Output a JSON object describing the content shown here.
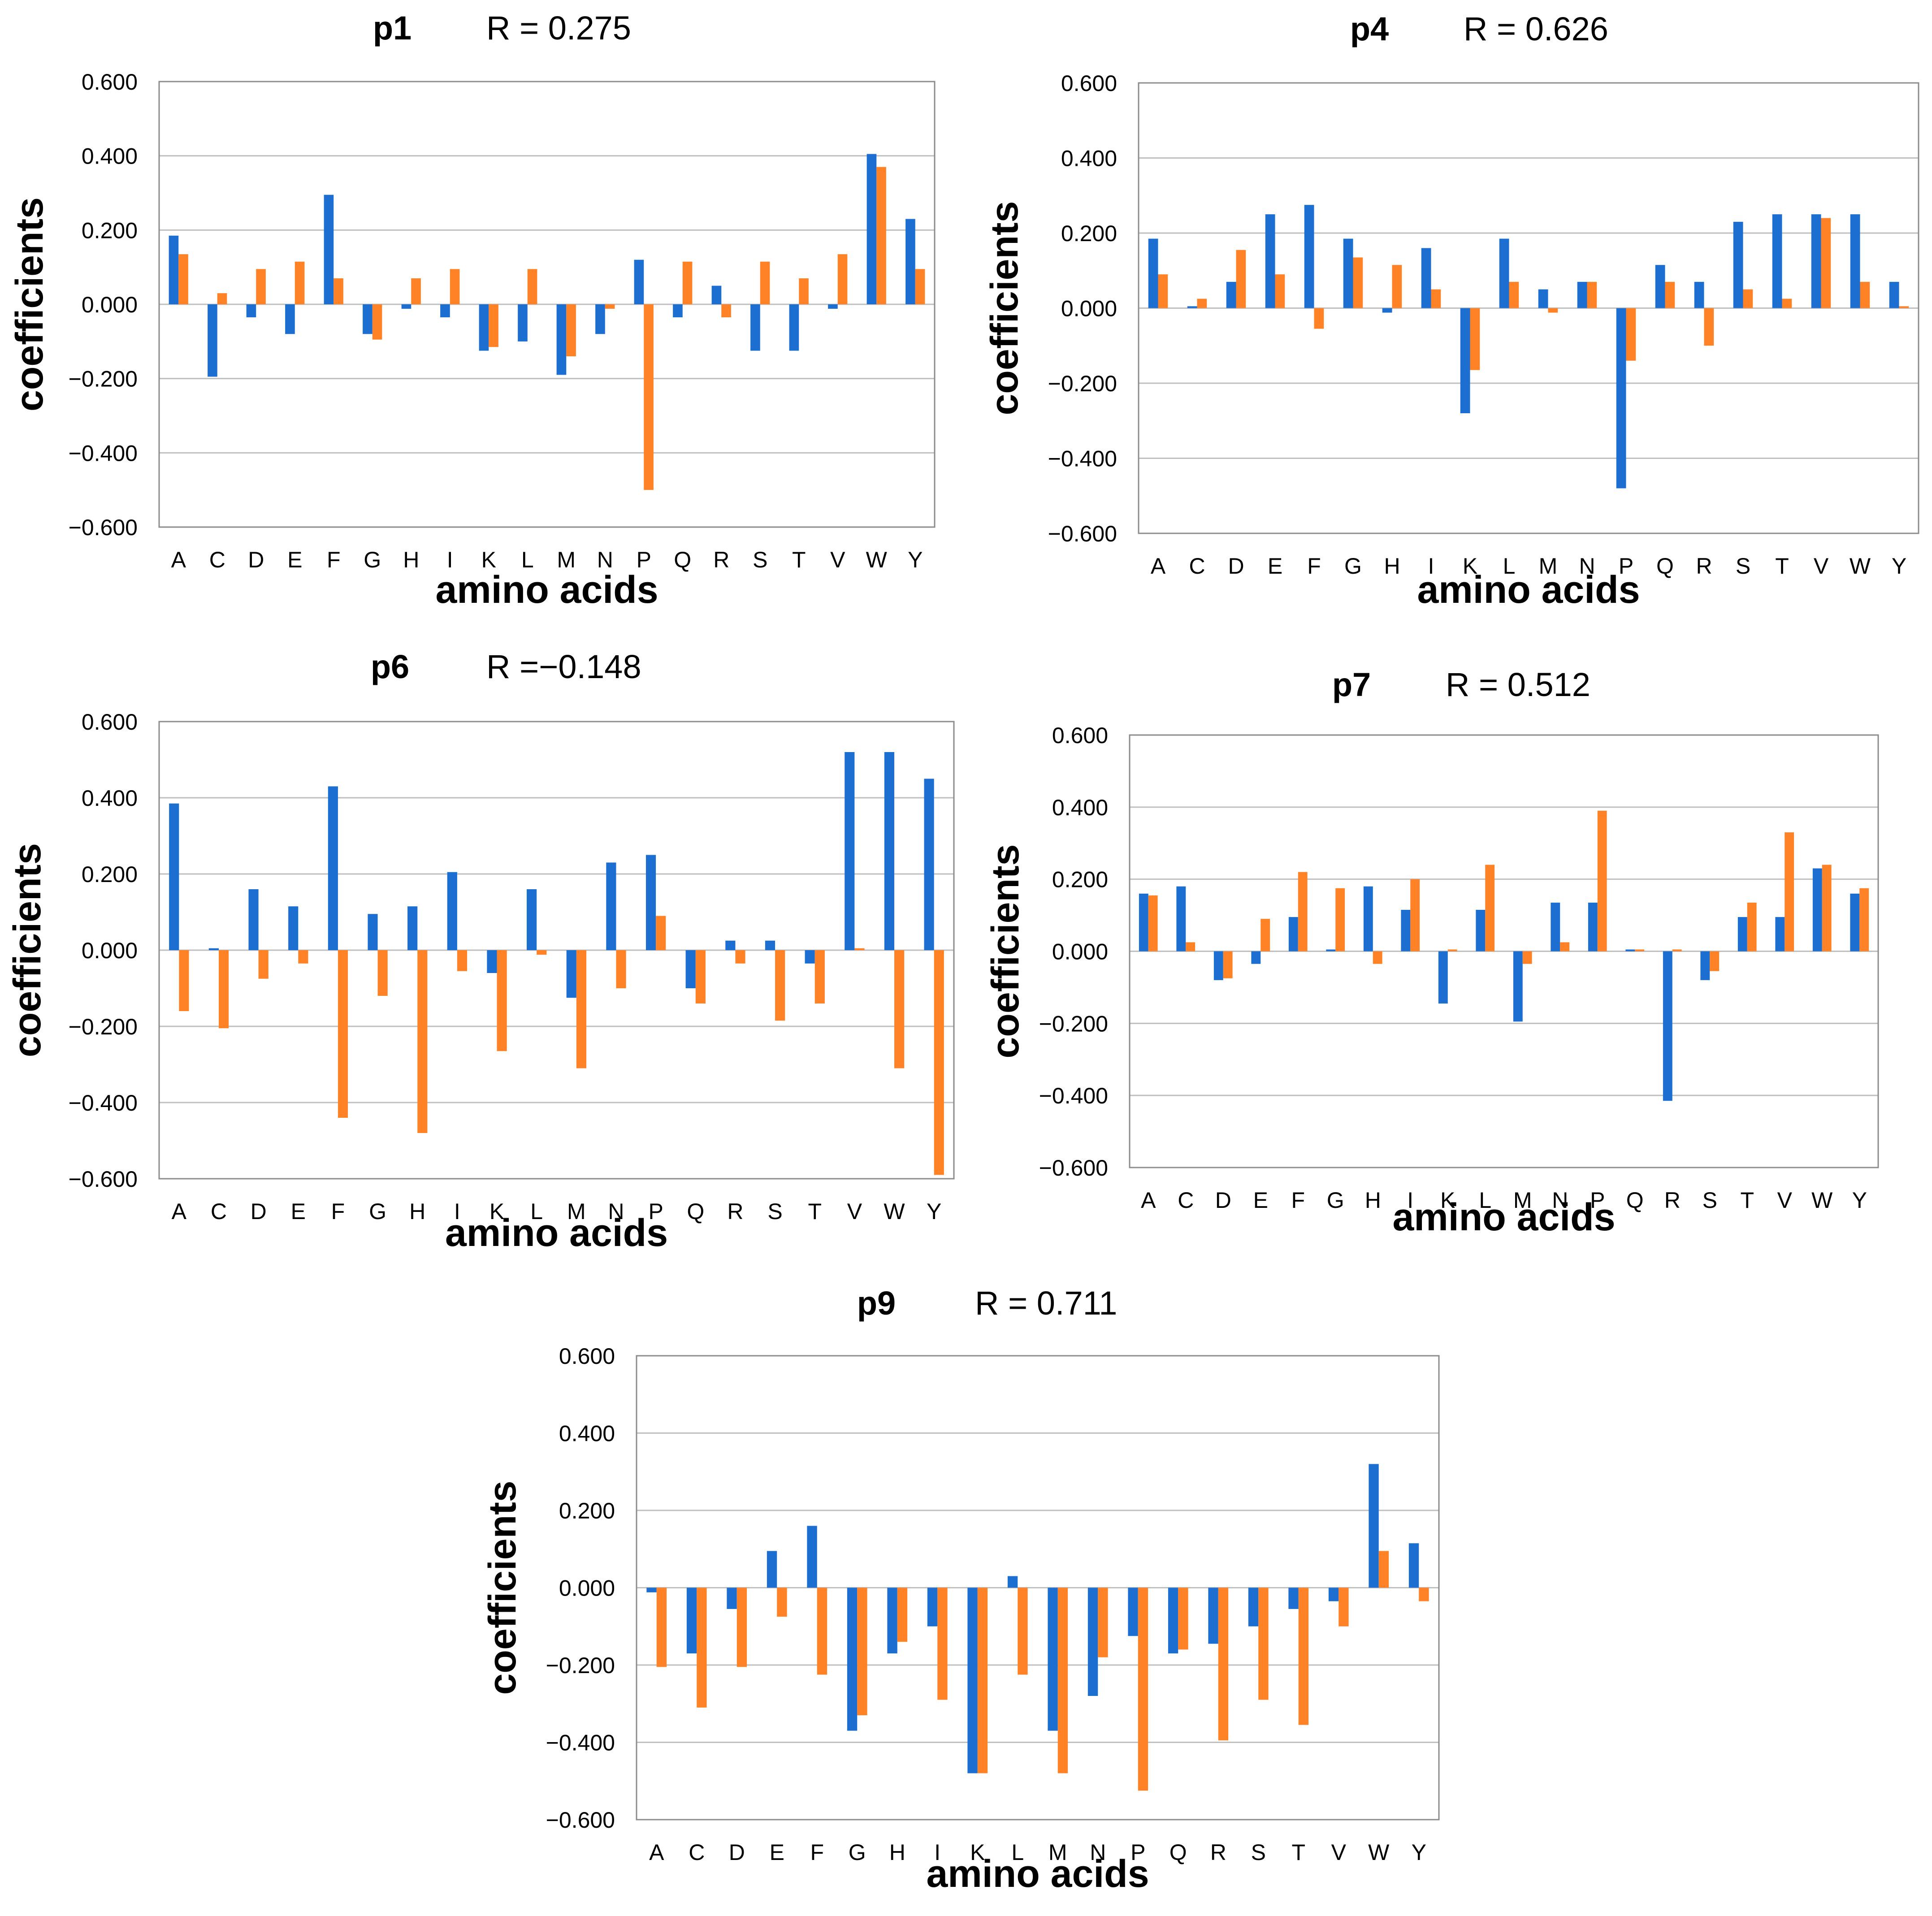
{
  "colors": {
    "series_a": "#1c6fd1",
    "series_b": "#ff8227",
    "grid": "#bfbfbf",
    "frame": "#8c8c8c"
  },
  "chart_data": [
    {
      "type": "bar",
      "panel": "p1",
      "r_label": "R = 0.275",
      "xlabel": "amino acids",
      "ylabel": "coefficients",
      "ylim": [
        -0.6,
        0.6
      ],
      "yticks": [
        "0.600",
        "0.400",
        "0.200",
        "0.000",
        "−0.200",
        "−0.400",
        "−0.600"
      ],
      "grid": true,
      "legend": "none",
      "categories": [
        "A",
        "C",
        "D",
        "E",
        "F",
        "G",
        "H",
        "I",
        "K",
        "L",
        "M",
        "N",
        "P",
        "Q",
        "R",
        "S",
        "T",
        "V",
        "W",
        "Y"
      ],
      "series": [
        {
          "name": "blue",
          "values": [
            0.185,
            -0.195,
            -0.035,
            -0.08,
            0.295,
            -0.08,
            -0.012,
            -0.035,
            -0.125,
            -0.1,
            -0.19,
            -0.08,
            0.12,
            -0.035,
            0.05,
            -0.125,
            -0.125,
            -0.012,
            0.405,
            0.23
          ]
        },
        {
          "name": "orange",
          "values": [
            0.135,
            0.03,
            0.095,
            0.115,
            0.07,
            -0.095,
            0.07,
            0.095,
            -0.115,
            0.095,
            -0.14,
            -0.012,
            -0.5,
            0.115,
            -0.035,
            0.115,
            0.07,
            0.135,
            0.37,
            0.095
          ]
        }
      ]
    },
    {
      "type": "bar",
      "panel": "p4",
      "r_label": "R = 0.626",
      "xlabel": "amino acids",
      "ylabel": "coefficients",
      "ylim": [
        -0.6,
        0.6
      ],
      "yticks": [
        "0.600",
        "0.400",
        "0.200",
        "0.000",
        "−0.200",
        "−0.400",
        "−0.600"
      ],
      "grid": true,
      "legend": "none",
      "categories": [
        "A",
        "C",
        "D",
        "E",
        "F",
        "G",
        "H",
        "I",
        "K",
        "L",
        "M",
        "N",
        "P",
        "Q",
        "R",
        "S",
        "T",
        "V",
        "W",
        "Y"
      ],
      "series": [
        {
          "name": "blue",
          "values": [
            0.185,
            0.005,
            0.07,
            0.25,
            0.275,
            0.185,
            -0.012,
            0.16,
            -0.28,
            0.185,
            0.05,
            0.07,
            -0.48,
            0.115,
            0.07,
            0.23,
            0.25,
            0.25,
            0.25,
            0.07
          ]
        },
        {
          "name": "orange",
          "values": [
            0.09,
            0.025,
            0.155,
            0.09,
            -0.055,
            0.135,
            0.115,
            0.05,
            -0.165,
            0.07,
            -0.012,
            0.07,
            -0.14,
            0.07,
            -0.1,
            0.05,
            0.025,
            0.24,
            0.07,
            0.005
          ]
        }
      ]
    },
    {
      "type": "bar",
      "panel": "p6",
      "r_label": "R =−0.148",
      "xlabel": "amino acids",
      "ylabel": "coefficients",
      "ylim": [
        -0.6,
        0.6
      ],
      "yticks": [
        "0.600",
        "0.400",
        "0.200",
        "0.000",
        "−0.200",
        "−0.400",
        "−0.600"
      ],
      "grid": true,
      "legend": "none",
      "categories": [
        "A",
        "C",
        "D",
        "E",
        "F",
        "G",
        "H",
        "I",
        "K",
        "L",
        "M",
        "N",
        "P",
        "Q",
        "R",
        "S",
        "T",
        "V",
        "W",
        "Y"
      ],
      "series": [
        {
          "name": "blue",
          "values": [
            0.385,
            0.005,
            0.16,
            0.115,
            0.43,
            0.095,
            0.115,
            0.205,
            -0.06,
            0.16,
            -0.125,
            0.23,
            0.25,
            -0.1,
            0.025,
            0.025,
            -0.035,
            0.52,
            0.52,
            0.45
          ]
        },
        {
          "name": "orange",
          "values": [
            -0.16,
            -0.205,
            -0.075,
            -0.035,
            -0.44,
            -0.12,
            -0.48,
            -0.055,
            -0.265,
            -0.012,
            -0.31,
            -0.1,
            0.09,
            -0.14,
            -0.035,
            -0.185,
            -0.14,
            0.005,
            -0.31,
            -0.59
          ]
        }
      ]
    },
    {
      "type": "bar",
      "panel": "p7",
      "r_label": "R = 0.512",
      "xlabel": "amino acids",
      "ylabel": "coefficients",
      "ylim": [
        -0.6,
        0.6
      ],
      "yticks": [
        "0.600",
        "0.400",
        "0.200",
        "0.000",
        "−0.200",
        "−0.400",
        "−0.600"
      ],
      "grid": true,
      "legend": "none",
      "categories": [
        "A",
        "C",
        "D",
        "E",
        "F",
        "G",
        "H",
        "I",
        "K",
        "L",
        "M",
        "N",
        "P",
        "Q",
        "R",
        "S",
        "T",
        "V",
        "W",
        "Y"
      ],
      "series": [
        {
          "name": "blue",
          "values": [
            0.16,
            0.18,
            -0.08,
            -0.035,
            0.095,
            0.005,
            0.18,
            0.115,
            -0.145,
            0.115,
            -0.195,
            0.135,
            0.135,
            0.005,
            -0.415,
            -0.08,
            0.095,
            0.095,
            0.23,
            0.16
          ]
        },
        {
          "name": "orange",
          "values": [
            0.155,
            0.025,
            -0.075,
            0.09,
            0.22,
            0.175,
            -0.035,
            0.2,
            0.005,
            0.24,
            -0.035,
            0.025,
            0.39,
            0.005,
            0.005,
            -0.055,
            0.135,
            0.33,
            0.24,
            0.175
          ]
        }
      ]
    },
    {
      "type": "bar",
      "panel": "p9",
      "r_label": "R = 0.711",
      "xlabel": "amino acids",
      "ylabel": "coefficients",
      "ylim": [
        -0.6,
        0.6
      ],
      "yticks": [
        "0.600",
        "0.400",
        "0.200",
        "0.000",
        "−0.200",
        "−0.400",
        "−0.600"
      ],
      "grid": true,
      "legend": "none",
      "categories": [
        "A",
        "C",
        "D",
        "E",
        "F",
        "G",
        "H",
        "I",
        "K",
        "L",
        "M",
        "N",
        "P",
        "Q",
        "R",
        "S",
        "T",
        "V",
        "W",
        "Y"
      ],
      "series": [
        {
          "name": "blue",
          "values": [
            -0.012,
            -0.17,
            -0.055,
            0.095,
            0.16,
            -0.37,
            -0.17,
            -0.1,
            -0.48,
            0.03,
            -0.37,
            -0.28,
            -0.125,
            -0.17,
            -0.145,
            -0.1,
            -0.055,
            -0.035,
            0.32,
            0.115
          ]
        },
        {
          "name": "orange",
          "values": [
            -0.205,
            -0.31,
            -0.205,
            -0.075,
            -0.225,
            -0.33,
            -0.14,
            -0.29,
            -0.48,
            -0.225,
            -0.48,
            -0.18,
            -0.525,
            -0.16,
            -0.395,
            -0.29,
            -0.355,
            -0.1,
            0.095,
            -0.035
          ]
        }
      ]
    }
  ]
}
